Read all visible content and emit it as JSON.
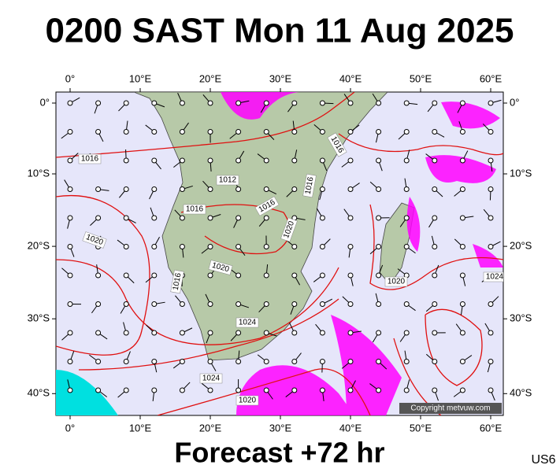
{
  "title": "0200 SAST Mon 11 Aug 2025",
  "footer": "Forecast +72 hr",
  "model": "US6",
  "copyright": "Copyright metvuw.com",
  "lon_ticks": [
    {
      "value": 0,
      "label": "0°"
    },
    {
      "value": 10,
      "label": "10°E"
    },
    {
      "value": 20,
      "label": "20°E"
    },
    {
      "value": 30,
      "label": "30°E"
    },
    {
      "value": 40,
      "label": "40°E"
    },
    {
      "value": 50,
      "label": "50°E"
    },
    {
      "value": 60,
      "label": "60°E"
    }
  ],
  "lat_ticks": [
    {
      "value": 0,
      "label": "0°"
    },
    {
      "value": -10,
      "label": "10°S"
    },
    {
      "value": -20,
      "label": "20°S"
    },
    {
      "value": -30,
      "label": "30°S"
    },
    {
      "value": -40,
      "label": "40°S"
    }
  ],
  "isobar_labels": [
    1016,
    1012,
    1016,
    1016,
    1016,
    1016,
    1020,
    1020,
    1020,
    1016,
    1024,
    1020,
    1024,
    1024,
    1020
  ]
}
